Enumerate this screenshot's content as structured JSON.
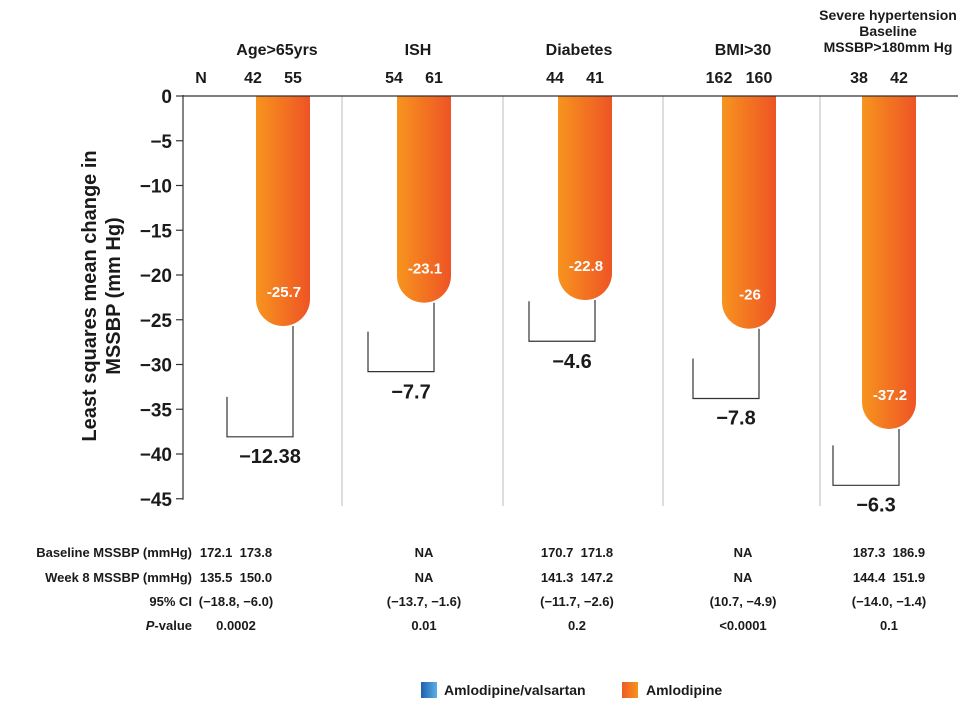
{
  "chart_data": {
    "type": "bar",
    "ylabel_lines": [
      "Least squares mean change in",
      "MSSBP (mm Hg)"
    ],
    "ylim": [
      -45,
      0
    ],
    "yticks": [
      0,
      -5,
      -10,
      -15,
      -20,
      -25,
      -30,
      -35,
      -40,
      -45
    ],
    "ytick_labels": [
      "0",
      "−5",
      "−10",
      "−15",
      "−20",
      "−25",
      "−30",
      "−35",
      "−40",
      "−45"
    ],
    "n_label": "N",
    "groups": [
      {
        "label_lines": [
          "Age>65yrs"
        ],
        "n": [
          "42",
          "55"
        ],
        "amlodipine": -25.7,
        "value_label": "-25.7",
        "combo": -38.08,
        "diff_label": "−12.38"
      },
      {
        "label_lines": [
          "ISH"
        ],
        "n": [
          "54",
          "61"
        ],
        "amlodipine": -23.1,
        "value_label": "-23.1",
        "combo": -30.8,
        "diff_label": "−7.7"
      },
      {
        "label_lines": [
          "Diabetes"
        ],
        "n": [
          "44",
          "41"
        ],
        "amlodipine": -22.8,
        "value_label": "-22.8",
        "combo": -27.4,
        "diff_label": "−4.6"
      },
      {
        "label_lines": [
          "BMI>30"
        ],
        "n": [
          "162",
          "160"
        ],
        "amlodipine": -26,
        "value_label": "-26",
        "combo": -33.8,
        "diff_label": "−7.8"
      },
      {
        "label_lines": [
          "Severe hypertension",
          "Baseline",
          "MSSBP>180mm Hg"
        ],
        "n": [
          "38",
          "42"
        ],
        "amlodipine": -37.2,
        "value_label": "-37.2",
        "combo": -43.5,
        "diff_label": "−6.3"
      }
    ],
    "table": {
      "rows": [
        {
          "label": "Baseline MSSBP (mmHg)",
          "values": [
            "172.1  173.8",
            "NA",
            "170.7  171.8",
            "NA",
            "187.3  186.9"
          ]
        },
        {
          "label": "Week 8 MSSBP (mmHg)",
          "values": [
            "135.5  150.0",
            "NA",
            "141.3  147.2",
            "NA",
            "144.4  151.9"
          ]
        },
        {
          "label": "95% CI",
          "values": [
            "(−18.8, −6.0)",
            "(−13.7, −1.6)",
            "(−11.7, −2.6)",
            "(10.7, −4.9)",
            "(−14.0, −1.4)"
          ]
        },
        {
          "label_italic": "P",
          "label_rest": "-value",
          "values": [
            "0.0002",
            "0.01",
            "0.2",
            "<0.0001",
            "0.1"
          ]
        }
      ]
    },
    "legend": [
      {
        "name": "Amlodipine/valsartan",
        "color_top": "#1e5fb0",
        "color_bottom": "#5ab0e6"
      },
      {
        "name": "Amlodipine",
        "color_top": "#ef5a24",
        "color_bottom": "#f7931e"
      }
    ],
    "colors": {
      "bar_left": "#f7941e",
      "bar_right": "#ee5425",
      "axis": "#333333",
      "divider": "#bbbbbb"
    }
  }
}
